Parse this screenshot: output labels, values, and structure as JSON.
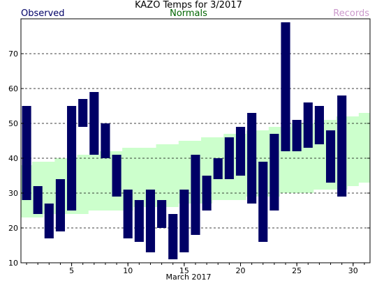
{
  "chart_data": {
    "type": "bar",
    "title": "KAZO Temps for 3/2017",
    "legend": {
      "observed": "Observed",
      "normals": "Normals",
      "records": "Records"
    },
    "xlabel": "March 2017",
    "ylabel": "",
    "xlim": [
      0.5,
      31.5
    ],
    "ylim": [
      10,
      80
    ],
    "x_ticks": [
      5,
      10,
      15,
      20,
      25,
      30
    ],
    "y_ticks": [
      10,
      20,
      30,
      40,
      50,
      60,
      70
    ],
    "grid": "horizontal dashed",
    "colors": {
      "observed": "#000066",
      "normals_band": "#ccffcc",
      "observed_label": "#000066",
      "normals_label": "#006600",
      "records_label": "#cc99cc"
    },
    "observed": {
      "days": [
        1,
        2,
        3,
        4,
        5,
        6,
        7,
        8,
        9,
        10,
        11,
        12,
        13,
        14,
        15,
        16,
        17,
        18,
        19,
        20,
        21,
        22,
        23,
        24,
        25,
        26,
        27,
        28,
        29
      ],
      "high": [
        55,
        32,
        27,
        34,
        55,
        57,
        59,
        50,
        41,
        31,
        28,
        31,
        28,
        24,
        31,
        41,
        35,
        40,
        46,
        49,
        53,
        39,
        47,
        79,
        51,
        56,
        55,
        48,
        58
      ],
      "low": [
        28,
        24,
        17,
        19,
        25,
        49,
        41,
        40,
        29,
        17,
        16,
        13,
        20,
        11,
        13,
        18,
        25,
        34,
        34,
        35,
        27,
        16,
        25,
        42,
        42,
        43,
        44,
        33,
        29
      ]
    },
    "normals": {
      "days": [
        1,
        2,
        3,
        4,
        5,
        6,
        7,
        8,
        9,
        10,
        11,
        12,
        13,
        14,
        15,
        16,
        17,
        18,
        19,
        20,
        21,
        22,
        23,
        24,
        25,
        26,
        27,
        28,
        29,
        30,
        31
      ],
      "high": [
        38,
        39,
        39,
        40,
        40,
        41,
        41,
        42,
        42,
        43,
        43,
        43,
        44,
        44,
        45,
        45,
        46,
        46,
        47,
        47,
        48,
        48,
        49,
        49,
        50,
        50,
        51,
        51,
        52,
        52,
        53
      ],
      "low": [
        23,
        23,
        24,
        24,
        24,
        24,
        25,
        25,
        25,
        25,
        26,
        26,
        26,
        26,
        27,
        27,
        27,
        28,
        28,
        28,
        29,
        29,
        29,
        30,
        30,
        30,
        31,
        31,
        31,
        32,
        33
      ]
    }
  }
}
